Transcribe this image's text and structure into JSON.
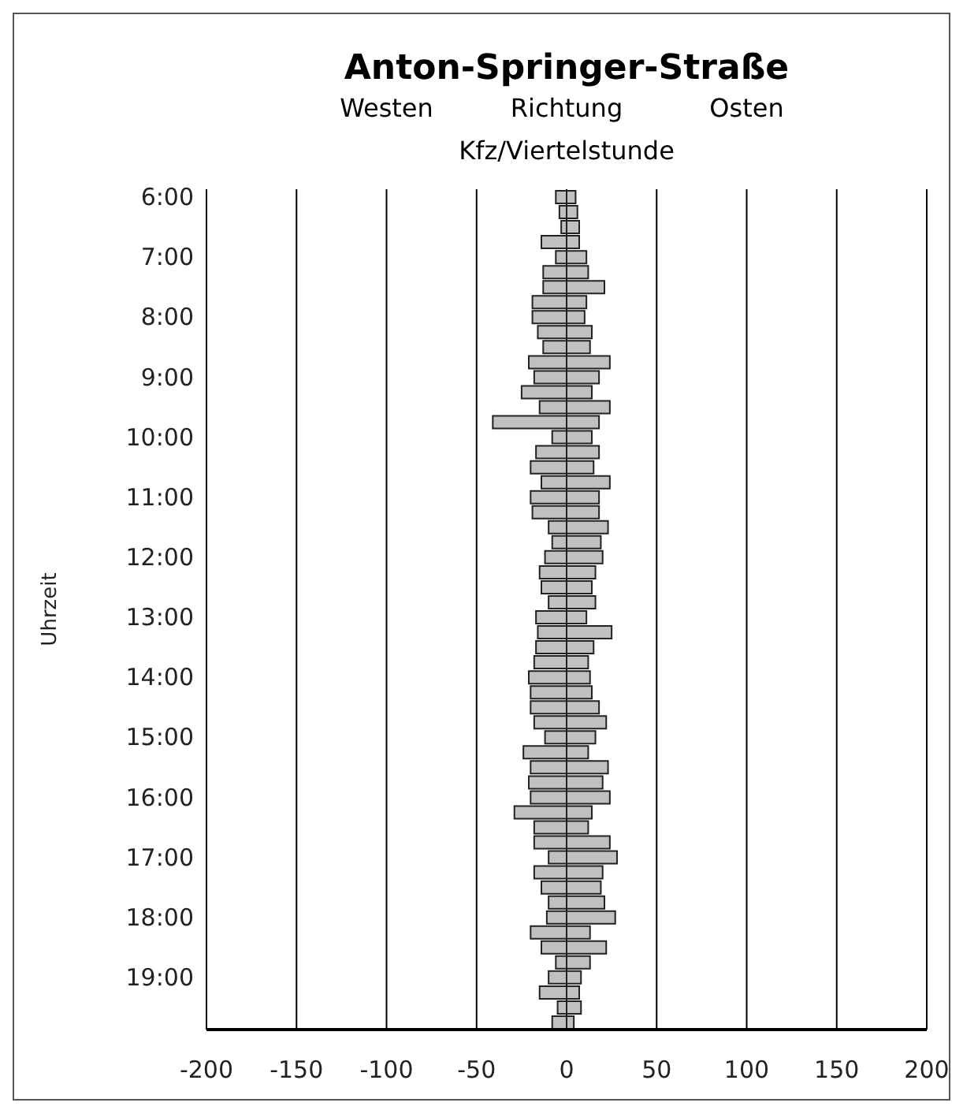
{
  "chart_data": {
    "type": "bar",
    "orientation": "horizontal",
    "stacked": true,
    "title": "Anton-Springer-Straße",
    "subtitle": "Richtung",
    "xlabel": "Kfz/Viertelstunde",
    "ylabel": "Uhrzeit",
    "annotations": [
      "Westen",
      "Osten"
    ],
    "categories": [
      "6:00",
      null,
      null,
      null,
      "7:00",
      null,
      null,
      null,
      "8:00",
      null,
      null,
      null,
      "9:00",
      null,
      null,
      null,
      "10:00",
      null,
      null,
      null,
      "11:00",
      null,
      null,
      null,
      "12:00",
      null,
      null,
      null,
      "13:00",
      null,
      null,
      null,
      "14:00",
      null,
      null,
      null,
      "15:00",
      null,
      null,
      null,
      "16:00",
      null,
      null,
      null,
      "17:00",
      null,
      null,
      null,
      "18:00",
      null,
      null,
      null,
      "19:00",
      null,
      null,
      null
    ],
    "series": [
      {
        "color": "#c0c0c0",
        "values": [
          -6,
          -4,
          -3,
          -14,
          -6,
          -13,
          -13,
          -19,
          -19,
          -16,
          -13,
          -21,
          -18,
          -25,
          -15,
          -41,
          -8,
          -17,
          -20,
          -14,
          -20,
          -19,
          -10,
          -8,
          -12,
          -15,
          -14,
          -10,
          -17,
          -16,
          -17,
          -18,
          -21,
          -20,
          -20,
          -18,
          -12,
          -24,
          -20,
          -21,
          -20,
          -29,
          -18,
          -18,
          -10,
          -18,
          -14,
          -10,
          -11,
          -20,
          -14,
          -6,
          -10,
          -15,
          -5,
          -8
        ]
      },
      {
        "color": "#c0c0c0",
        "values": [
          5,
          6,
          7,
          7,
          11,
          12,
          21,
          11,
          10,
          14,
          13,
          24,
          18,
          14,
          24,
          18,
          14,
          18,
          15,
          24,
          18,
          18,
          23,
          19,
          20,
          16,
          14,
          16,
          11,
          25,
          15,
          12,
          13,
          14,
          18,
          22,
          16,
          12,
          23,
          20,
          24,
          14,
          12,
          24,
          28,
          20,
          19,
          21,
          27,
          13,
          22,
          13,
          8,
          7,
          8,
          4
        ]
      }
    ],
    "xlim": [
      -200,
      200
    ],
    "xticks": [
      -200,
      -150,
      -100,
      -50,
      0,
      50,
      100,
      150,
      200
    ],
    "grid": "x"
  }
}
